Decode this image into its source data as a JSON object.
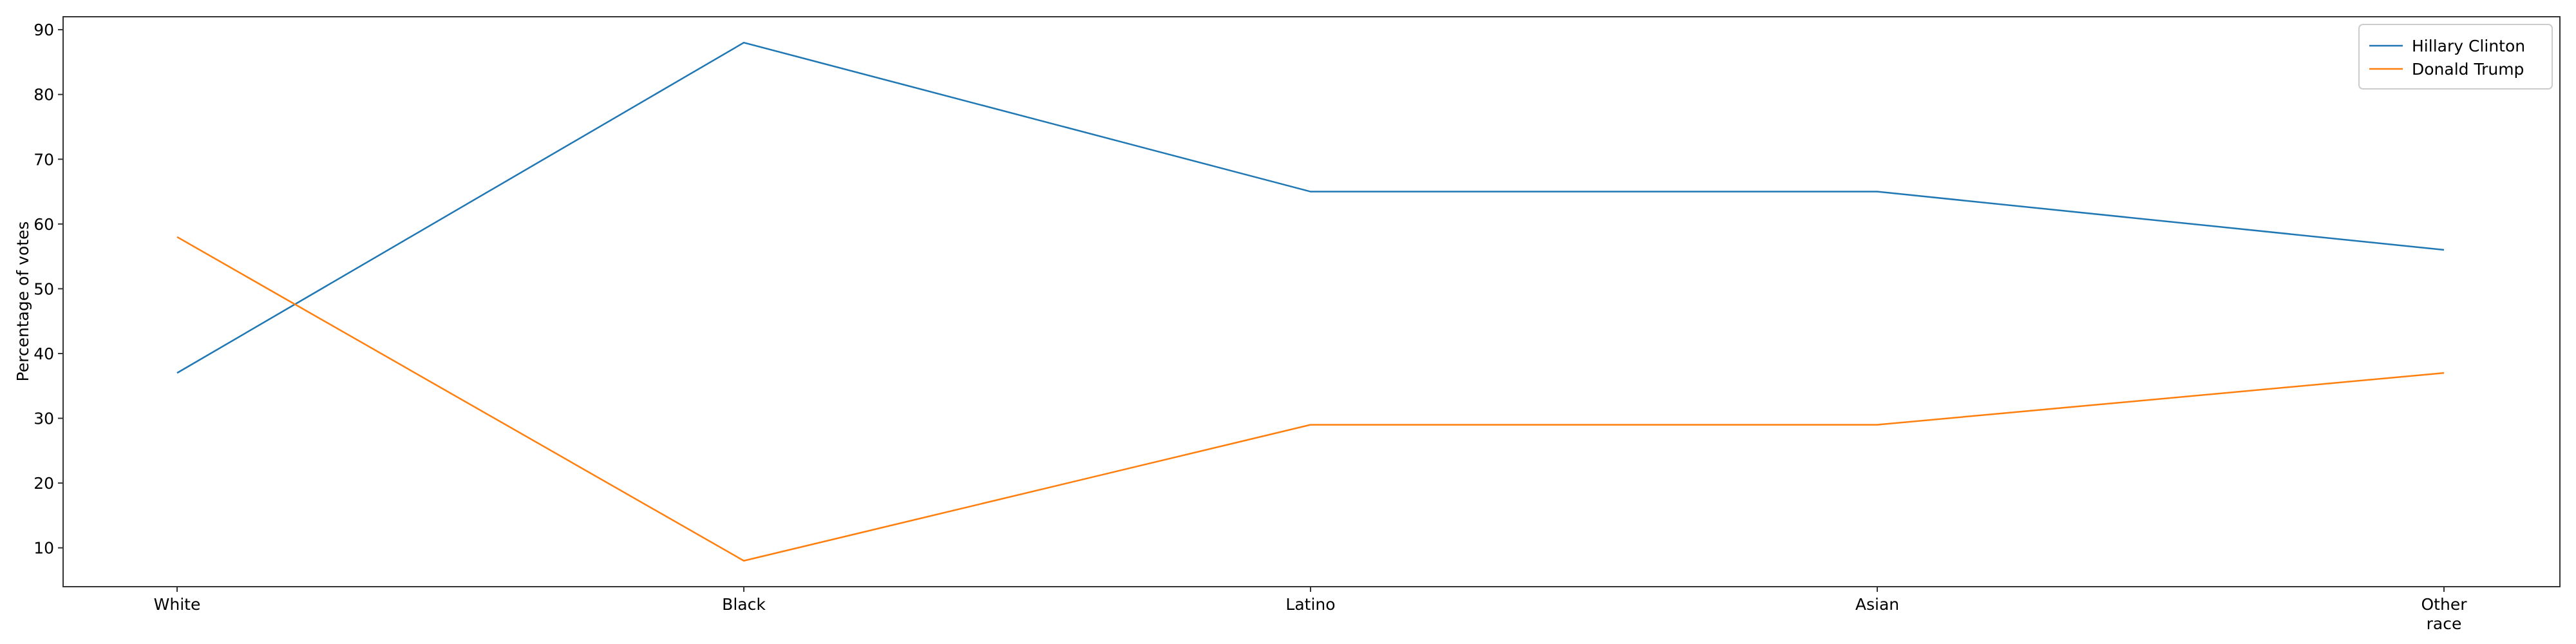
{
  "chart_data": {
    "type": "line",
    "title": "",
    "xlabel": "",
    "ylabel": "Percentage of votes",
    "categories": [
      "White",
      "Black",
      "Latino",
      "Asian",
      "Other race"
    ],
    "category_label_lines": [
      [
        "White"
      ],
      [
        "Black"
      ],
      [
        "Latino"
      ],
      [
        "Asian"
      ],
      [
        "Other",
        "race"
      ]
    ],
    "ylim": [
      4,
      92
    ],
    "yticks": [
      10,
      20,
      30,
      40,
      50,
      60,
      70,
      80,
      90
    ],
    "grid": false,
    "legend_position": "top-right",
    "series": [
      {
        "name": "Hillary Clinton",
        "color": "#1f77b4",
        "values": [
          37,
          88,
          65,
          65,
          56
        ]
      },
      {
        "name": "Donald Trump",
        "color": "#ff7f0e",
        "values": [
          58,
          8,
          29,
          29,
          37
        ]
      }
    ]
  }
}
